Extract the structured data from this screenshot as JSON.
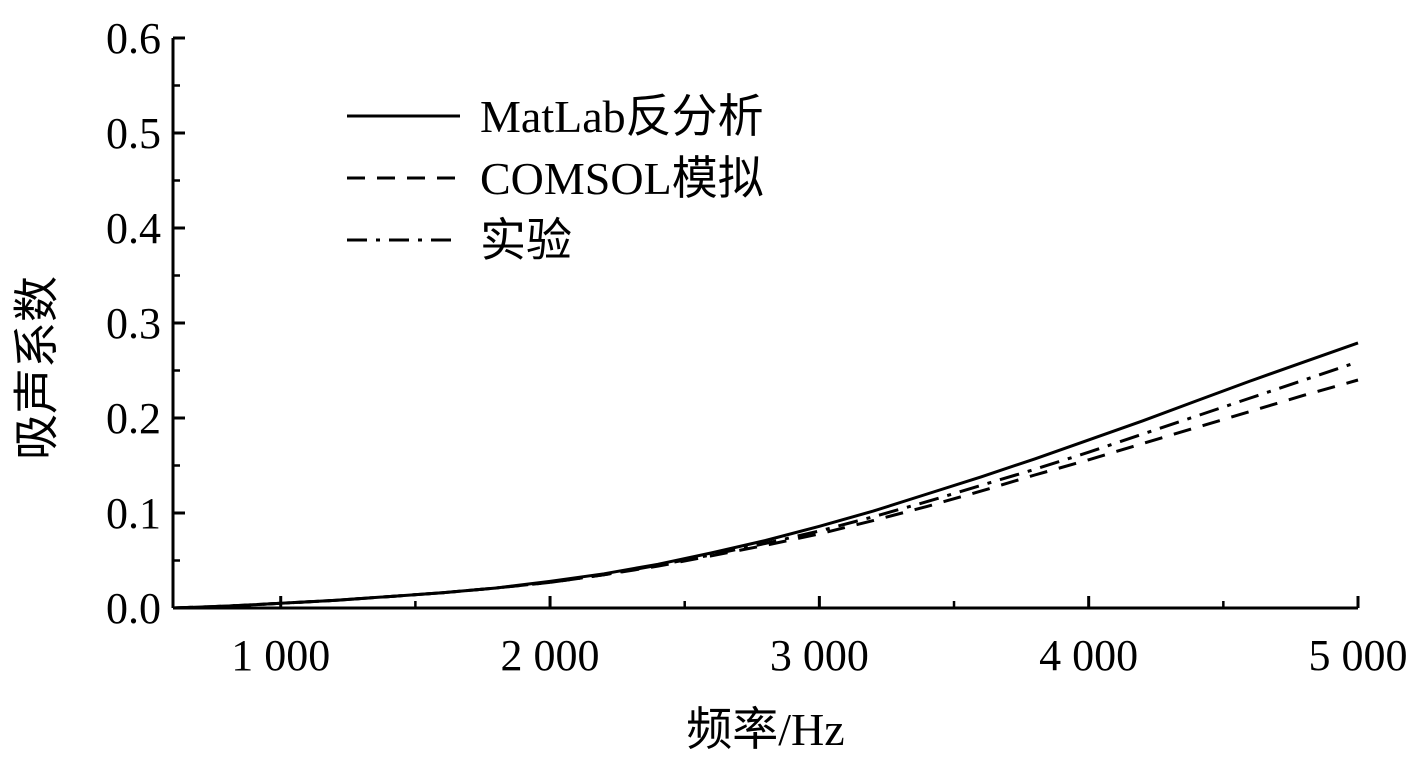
{
  "chart_data": {
    "type": "line",
    "title": "",
    "xlabel": "频率/Hz",
    "ylabel": "吸声系数",
    "xlim": [
      600,
      5000
    ],
    "ylim": [
      0.0,
      0.6
    ],
    "x_ticks": [
      1000,
      2000,
      3000,
      4000,
      5000
    ],
    "x_tick_labels": [
      "1 000",
      "2 000",
      "3 000",
      "4 000",
      "5 000"
    ],
    "y_ticks": [
      0.0,
      0.1,
      0.2,
      0.3,
      0.4,
      0.5,
      0.6
    ],
    "y_tick_labels": [
      "0.0",
      "0.1",
      "0.2",
      "0.3",
      "0.4",
      "0.5",
      "0.6"
    ],
    "grid": false,
    "legend_position": "top-left",
    "x": [
      600,
      800,
      1000,
      1200,
      1400,
      1600,
      1800,
      2000,
      2200,
      2400,
      2600,
      2800,
      3000,
      3200,
      3400,
      3600,
      3800,
      4000,
      4200,
      4400,
      4600,
      4800,
      5000
    ],
    "series": [
      {
        "name": "MatLab反分析",
        "style": "solid",
        "values": [
          0.0,
          0.002,
          0.005,
          0.008,
          0.012,
          0.016,
          0.021,
          0.028,
          0.036,
          0.046,
          0.058,
          0.071,
          0.086,
          0.102,
          0.12,
          0.138,
          0.157,
          0.177,
          0.197,
          0.218,
          0.239,
          0.259,
          0.279
        ]
      },
      {
        "name": "COMSOL模拟",
        "style": "dashed",
        "values": [
          0.0,
          0.002,
          0.005,
          0.008,
          0.012,
          0.016,
          0.021,
          0.027,
          0.035,
          0.044,
          0.055,
          0.066,
          0.078,
          0.092,
          0.107,
          0.123,
          0.14,
          0.156,
          0.173,
          0.19,
          0.207,
          0.224,
          0.24
        ]
      },
      {
        "name": "实验",
        "style": "dash-dot",
        "values": [
          0.0,
          0.002,
          0.005,
          0.008,
          0.012,
          0.016,
          0.021,
          0.027,
          0.035,
          0.045,
          0.056,
          0.068,
          0.081,
          0.096,
          0.112,
          0.129,
          0.146,
          0.164,
          0.183,
          0.202,
          0.221,
          0.24,
          0.259
        ]
      }
    ]
  }
}
